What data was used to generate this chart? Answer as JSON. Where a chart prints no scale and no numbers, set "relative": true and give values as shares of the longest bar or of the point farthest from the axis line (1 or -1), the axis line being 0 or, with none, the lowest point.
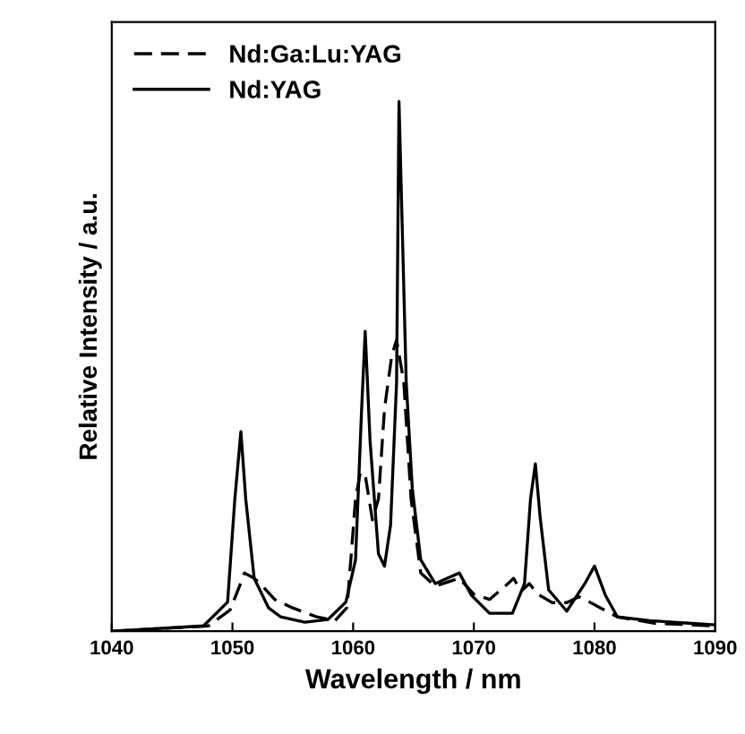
{
  "chart_data": {
    "type": "line",
    "relative": true,
    "xlabel": "Wavelength / nm",
    "ylabel": "Relative Intensity / a.u.",
    "xlim": [
      1040,
      1090
    ],
    "xticks": [
      1040,
      1050,
      1060,
      1070,
      1080,
      1090
    ],
    "legend": "top left",
    "grid": false,
    "marker": "none",
    "tick_labels": "x",
    "series": [
      {
        "name": "Nd:Ga:Lu:YAG",
        "color": "#000000",
        "line_style": "dashed",
        "x": [
          1040,
          1048,
          1049.8,
          1050.5,
          1051.0,
          1051.8,
          1052.5,
          1053.5,
          1055,
          1057,
          1058.5,
          1059.5,
          1060.2,
          1060.6,
          1061.0,
          1061.6,
          1062.1,
          1062.6,
          1063.2,
          1063.6,
          1064.2,
          1064.8,
          1065.6,
          1066.8,
          1068.8,
          1070,
          1071.3,
          1072.6,
          1073.3,
          1073.9,
          1074.6,
          1075.3,
          1076.5,
          1077.7,
          1078.7,
          1079.6,
          1080.5,
          1081.9,
          1085,
          1090
        ],
        "values": [
          0,
          0.01,
          0.04,
          0.08,
          0.11,
          0.1,
          0.085,
          0.06,
          0.044,
          0.027,
          0.02,
          0.045,
          0.25,
          0.3,
          0.295,
          0.21,
          0.25,
          0.42,
          0.52,
          0.55,
          0.47,
          0.25,
          0.11,
          0.085,
          0.1,
          0.07,
          0.06,
          0.085,
          0.1,
          0.075,
          0.09,
          0.07,
          0.054,
          0.054,
          0.065,
          0.055,
          0.044,
          0.027,
          0.015,
          0.01
        ]
      },
      {
        "name": "Nd:YAG",
        "color": "#000000",
        "line_style": "solid",
        "x": [
          1040,
          1047.6,
          1049.6,
          1050.2,
          1050.7,
          1051.1,
          1051.8,
          1053.0,
          1054.0,
          1056.0,
          1057.9,
          1059.4,
          1060.2,
          1060.7,
          1061.0,
          1061.4,
          1062.1,
          1062.6,
          1063.1,
          1063.6,
          1063.8,
          1064.4,
          1064.9,
          1065.6,
          1066.8,
          1068.8,
          1069.8,
          1071.3,
          1073.2,
          1074.2,
          1074.7,
          1075.1,
          1075.5,
          1076.2,
          1077.7,
          1079.2,
          1080.0,
          1080.9,
          1081.9,
          1084.6,
          1090
        ],
        "values": [
          0,
          0.01,
          0.055,
          0.25,
          0.377,
          0.25,
          0.1,
          0.044,
          0.027,
          0.017,
          0.022,
          0.055,
          0.135,
          0.417,
          0.566,
          0.36,
          0.146,
          0.123,
          0.2,
          0.47,
          1.0,
          0.47,
          0.27,
          0.135,
          0.09,
          0.11,
          0.068,
          0.034,
          0.034,
          0.09,
          0.25,
          0.316,
          0.214,
          0.078,
          0.038,
          0.09,
          0.123,
          0.068,
          0.027,
          0.02,
          0.012
        ]
      }
    ]
  }
}
